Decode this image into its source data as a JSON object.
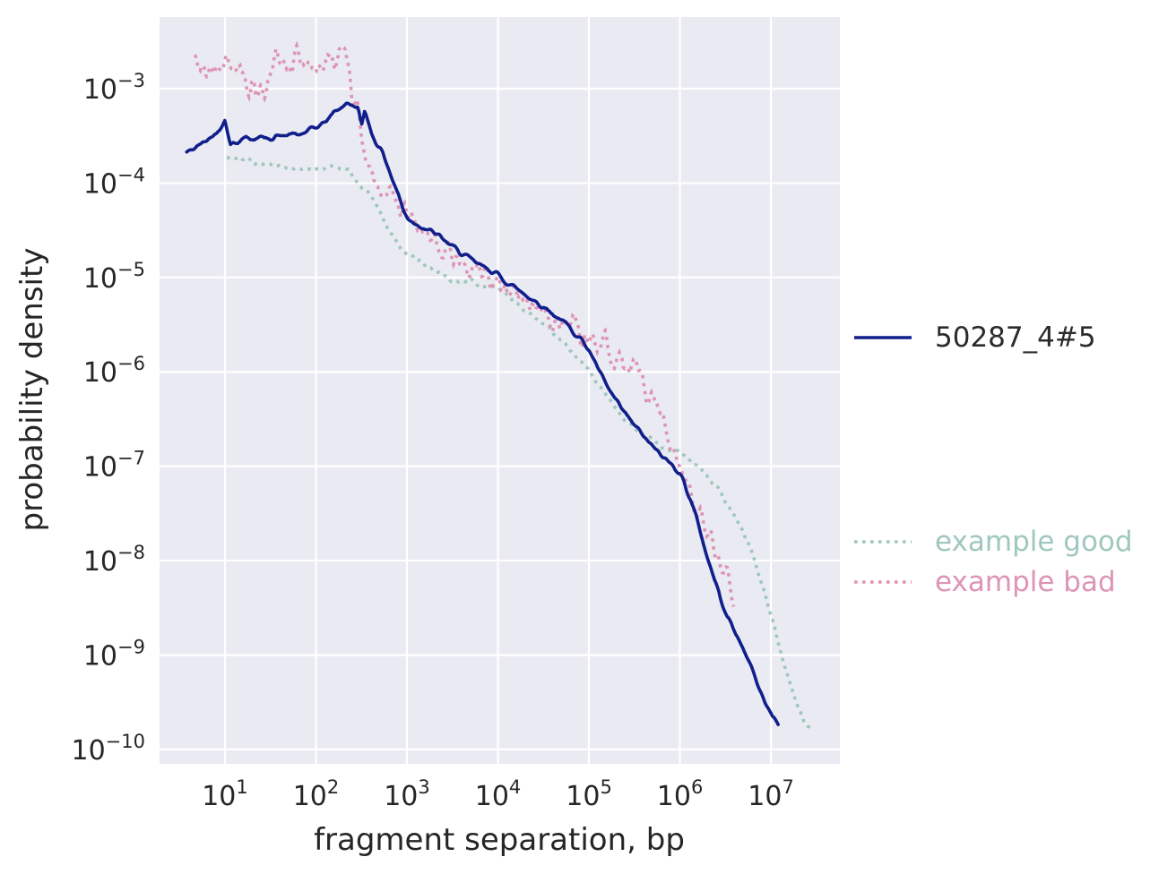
{
  "chart_data": {
    "type": "line",
    "title": "",
    "xlabel": "fragment separation, bp",
    "ylabel": "probability density",
    "x_scale": "log",
    "y_scale": "log",
    "grid": true,
    "legend_position": "right-outside",
    "background_color": "#eaeaf2",
    "grid_color": "#ffffff",
    "text_color": "#262626",
    "legend_text_color": "#2b2b2b",
    "x_ticks_exponents": [
      1,
      2,
      3,
      4,
      5,
      6,
      7
    ],
    "y_ticks_exponents": [
      -3,
      -4,
      -5,
      -6,
      -7,
      -8,
      -9,
      -10
    ],
    "x_log_range": [
      0.281,
      7.758
    ],
    "y_log_range": [
      -10.153,
      -2.241
    ],
    "tick_label_base": "10",
    "series": [
      {
        "name": "50287_4#5",
        "color": "#101f8c",
        "style": "solid",
        "line_width": 3.6,
        "jitter_log10": 0.022,
        "points": [
          [
            3.8,
            0.00021
          ],
          [
            4.5,
            0.00023
          ],
          [
            5.5,
            0.00026
          ],
          [
            6.5,
            0.00029
          ],
          [
            8,
            0.00034
          ],
          [
            10,
            0.00047
          ],
          [
            11.5,
            0.000255
          ],
          [
            13,
            0.00027
          ],
          [
            15,
            0.00029
          ],
          [
            17,
            0.00032
          ],
          [
            19,
            0.00028
          ],
          [
            22,
            0.00031
          ],
          [
            26,
            0.0003
          ],
          [
            30,
            0.00029
          ],
          [
            36,
            0.00032
          ],
          [
            43,
            0.00031
          ],
          [
            52,
            0.00033
          ],
          [
            62,
            0.00032
          ],
          [
            75,
            0.00034
          ],
          [
            90,
            0.00037
          ],
          [
            110,
            0.00041
          ],
          [
            130,
            0.00045
          ],
          [
            160,
            0.00058
          ],
          [
            190,
            0.00064
          ],
          [
            220,
            0.00069
          ],
          [
            250,
            0.00067
          ],
          [
            290,
            0.00063
          ],
          [
            316,
            0.00039
          ],
          [
            345,
            0.0006
          ],
          [
            380,
            0.00044
          ],
          [
            410,
            0.00033
          ],
          [
            470,
            0.00026
          ],
          [
            540,
            0.00021
          ],
          [
            620,
            0.00015
          ],
          [
            700,
            0.000105
          ],
          [
            810,
            7.5e-05
          ],
          [
            920,
            5e-05
          ],
          [
            1020,
            4.3e-05
          ],
          [
            1200,
            3.8e-05
          ],
          [
            1440,
            3.5e-05
          ],
          [
            1800,
            3.1e-05
          ],
          [
            2300,
            2.7e-05
          ],
          [
            3000,
            2.2e-05
          ],
          [
            4000,
            1.8e-05
          ],
          [
            5200,
            1.5e-05
          ],
          [
            6800,
            1.3e-05
          ],
          [
            9000,
            1.15e-05
          ],
          [
            12000,
            9.2e-06
          ],
          [
            16000,
            7.6e-06
          ],
          [
            21000,
            6.4e-06
          ],
          [
            28000,
            5.3e-06
          ],
          [
            37000,
            4.4e-06
          ],
          [
            48000,
            3.6e-06
          ],
          [
            63000,
            2.9e-06
          ],
          [
            83000,
            2.2e-06
          ],
          [
            100000,
            1.7e-06
          ],
          [
            130000,
            1e-06
          ],
          [
            170000,
            6.2e-07
          ],
          [
            220000,
            4.2e-07
          ],
          [
            290000,
            3e-07
          ],
          [
            380000,
            2.2e-07
          ],
          [
            500000,
            1.6e-07
          ],
          [
            650000,
            1.25e-07
          ],
          [
            850000,
            1e-07
          ],
          [
            1000000,
            8.7e-08
          ],
          [
            1300000,
            4.5e-08
          ],
          [
            1600000,
            2.4e-08
          ],
          [
            2050000,
            1e-08
          ],
          [
            2600000,
            5e-09
          ],
          [
            3300000,
            2.6e-09
          ],
          [
            4200000,
            1.6e-09
          ],
          [
            5400000,
            1e-09
          ],
          [
            6800000,
            5.5e-10
          ],
          [
            8600000,
            3.2e-10
          ],
          [
            10500000,
            2.2e-10
          ],
          [
            12000000,
            1.9e-10
          ]
        ]
      },
      {
        "name": "example good",
        "color": "#9fc7bd",
        "style": "dotted",
        "line_width": 3.6,
        "jitter_log10": 0.018,
        "points": [
          [
            10.5,
            0.000195
          ],
          [
            13,
            0.000185
          ],
          [
            17,
            0.000175
          ],
          [
            22,
            0.000165
          ],
          [
            29,
            0.000155
          ],
          [
            38,
            0.00015
          ],
          [
            50,
            0.000145
          ],
          [
            65,
            0.00014
          ],
          [
            85,
            0.000142
          ],
          [
            105,
            0.000138
          ],
          [
            135,
            0.00015
          ],
          [
            170,
            0.000145
          ],
          [
            230,
            0.00014
          ],
          [
            300,
            9.5e-05
          ],
          [
            380,
            8e-05
          ],
          [
            480,
            5.5e-05
          ],
          [
            600,
            3.5e-05
          ],
          [
            750,
            2.4e-05
          ],
          [
            950,
            1.9e-05
          ],
          [
            1200,
            1.6e-05
          ],
          [
            1600,
            1.35e-05
          ],
          [
            2100,
            1.15e-05
          ],
          [
            2800,
            1e-05
          ],
          [
            3700,
            8.8e-06
          ],
          [
            5000,
            9.5e-06
          ],
          [
            6500,
            7.5e-06
          ],
          [
            8500,
            8e-06
          ],
          [
            10000,
            8e-06
          ],
          [
            13000,
            6.2e-06
          ],
          [
            17000,
            5e-06
          ],
          [
            22000,
            4.2e-06
          ],
          [
            29000,
            3.4e-06
          ],
          [
            38000,
            2.7e-06
          ],
          [
            50000,
            2.1e-06
          ],
          [
            65000,
            1.6e-06
          ],
          [
            85000,
            1.25e-06
          ],
          [
            110000,
            9e-07
          ],
          [
            145000,
            6.2e-07
          ],
          [
            190000,
            4.2e-07
          ],
          [
            250000,
            3.1e-07
          ],
          [
            330000,
            2.5e-07
          ],
          [
            430000,
            2e-07
          ],
          [
            560000,
            1.75e-07
          ],
          [
            740000,
            1.5e-07
          ],
          [
            970000,
            1.5e-07
          ],
          [
            1300000,
            1.15e-07
          ],
          [
            1700000,
            9e-08
          ],
          [
            2200000,
            7e-08
          ],
          [
            2900000,
            5e-08
          ],
          [
            3800000,
            3.3e-08
          ],
          [
            5000000,
            2e-08
          ],
          [
            6500000,
            1.05e-08
          ],
          [
            8600000,
            4.5e-09
          ],
          [
            11000000,
            1.9e-09
          ],
          [
            14000000,
            8e-10
          ],
          [
            18000000,
            3.6e-10
          ],
          [
            23000000,
            2e-10
          ],
          [
            28000000,
            1.55e-10
          ]
        ]
      },
      {
        "name": "example bad",
        "color": "#de94b4",
        "style": "dotted",
        "line_width": 3.6,
        "jitter_log10": 0.11,
        "points": [
          [
            4.7,
            0.0017
          ],
          [
            5.5,
            0.00175
          ],
          [
            6.5,
            0.0016
          ],
          [
            8,
            0.0017
          ],
          [
            10,
            0.00165
          ],
          [
            12,
            0.00175
          ],
          [
            15,
            0.0015
          ],
          [
            18,
            0.0011
          ],
          [
            23,
            0.00082
          ],
          [
            28,
            0.00105
          ],
          [
            33,
            0.0016
          ],
          [
            40,
            0.0022
          ],
          [
            46,
            0.00135
          ],
          [
            55,
            0.0017
          ],
          [
            65,
            0.0024
          ],
          [
            75,
            0.00145
          ],
          [
            88,
            0.0018
          ],
          [
            100,
            0.00135
          ],
          [
            115,
            0.00165
          ],
          [
            135,
            0.0022
          ],
          [
            160,
            0.0015
          ],
          [
            190,
            0.002
          ],
          [
            210,
            0.0026
          ],
          [
            230,
            0.0013
          ],
          [
            250,
            0.0006
          ],
          [
            280,
            0.0009
          ],
          [
            310,
            0.00035
          ],
          [
            345,
            0.000165
          ],
          [
            400,
            0.00013
          ],
          [
            460,
            0.000115
          ],
          [
            530,
            9e-05
          ],
          [
            620,
            7.5e-05
          ],
          [
            730,
            6.8e-05
          ],
          [
            850,
            5.5e-05
          ],
          [
            1000,
            4.6e-05
          ],
          [
            1150,
            4.2e-05
          ],
          [
            1350,
            3.2e-05
          ],
          [
            1600,
            2.6e-05
          ],
          [
            1900,
            2.9e-05
          ],
          [
            2300,
            2e-05
          ],
          [
            2800,
            1.65e-05
          ],
          [
            3400,
            1.9e-05
          ],
          [
            4100,
            1.35e-05
          ],
          [
            5000,
            1.15e-05
          ],
          [
            6100,
            1.35e-05
          ],
          [
            7400,
            9e-06
          ],
          [
            9000,
            1.05e-05
          ],
          [
            11000,
            7e-06
          ],
          [
            13500,
            8e-06
          ],
          [
            16500,
            5.5e-06
          ],
          [
            20000,
            6.5e-06
          ],
          [
            25000,
            4.4e-06
          ],
          [
            30000,
            5.2e-06
          ],
          [
            37000,
            3.5e-06
          ],
          [
            45000,
            4.2e-06
          ],
          [
            55000,
            2.8e-06
          ],
          [
            68000,
            3.4e-06
          ],
          [
            83000,
            2.2e-06
          ],
          [
            100000,
            2.7e-06
          ],
          [
            125000,
            1.6e-06
          ],
          [
            150000,
            2e-06
          ],
          [
            185000,
            1.2e-06
          ],
          [
            230000,
            1.5e-06
          ],
          [
            280000,
            8.5e-07
          ],
          [
            340000,
            1.05e-06
          ],
          [
            420000,
            6e-07
          ],
          [
            520000,
            4.5e-07
          ],
          [
            640000,
            3e-07
          ],
          [
            780000,
            1.8e-07
          ],
          [
            960000,
            1.1e-07
          ],
          [
            1200000,
            7e-08
          ],
          [
            1450000,
            4.5e-08
          ],
          [
            1800000,
            2.8e-08
          ],
          [
            2200000,
            1.7e-08
          ],
          [
            2700000,
            1.05e-08
          ],
          [
            3300000,
            6.5e-09
          ],
          [
            3900000,
            4.2e-09
          ]
        ]
      }
    ]
  }
}
